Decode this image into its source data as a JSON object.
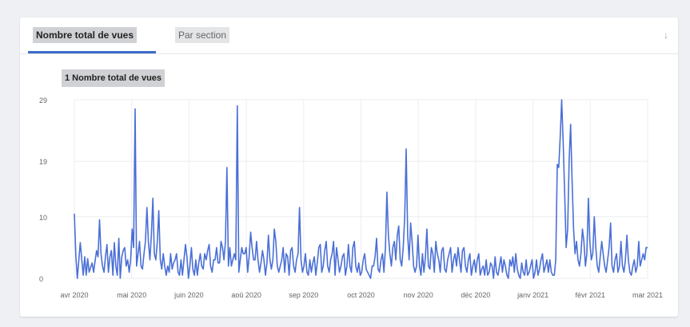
{
  "tabs": {
    "total_views": "Nombre total de vues",
    "by_section": "Par section"
  },
  "icons": {
    "download": "download-icon"
  },
  "colors": {
    "line": "#4a6fd6",
    "accent": "#3b6ccc",
    "grid": "#eceef1"
  },
  "chart_data": {
    "type": "line",
    "title": "",
    "series": [
      {
        "name": "1 Nombre total de vues",
        "values": [
          10.5,
          3.5,
          0,
          3,
          5.8,
          3,
          0.5,
          3.5,
          0.5,
          3.2,
          1,
          1.8,
          2.5,
          1,
          2.8,
          4.5,
          3.5,
          9.5,
          4,
          2,
          1,
          3.5,
          5.5,
          1,
          3.5,
          4.5,
          0.5,
          5.8,
          2,
          0.5,
          6.5,
          0,
          3.5,
          4.5,
          5,
          2,
          3,
          1,
          3,
          8,
          5,
          27.5,
          2,
          4,
          6,
          2,
          1.5,
          4,
          6,
          11.5,
          6,
          3,
          7,
          13,
          4,
          3,
          6,
          11,
          3,
          1.5,
          4,
          2,
          0.5,
          2,
          1,
          4,
          1.5,
          2.5,
          3,
          4,
          1,
          0.5,
          3,
          0.5,
          3,
          5.5,
          3.5,
          0,
          2,
          5,
          1.5,
          0.5,
          3,
          0.5,
          2.5,
          4,
          2,
          1.5,
          4,
          3,
          4.5,
          5.5,
          2,
          1,
          3,
          3,
          5,
          2.5,
          2.5,
          6,
          5,
          3,
          6,
          18,
          2,
          5,
          2,
          3,
          4,
          3,
          28,
          1,
          3,
          5,
          4,
          4,
          5,
          1,
          3.5,
          7.5,
          5,
          3,
          3,
          6,
          3,
          1,
          2.5,
          4.5,
          3,
          0.5,
          2.5,
          7,
          3,
          1.5,
          3,
          8,
          6,
          2,
          1,
          2,
          3,
          5,
          1,
          4,
          3.5,
          0.5,
          4.5,
          5,
          2,
          1,
          3,
          4,
          11.5,
          3,
          1,
          2,
          4,
          1,
          0.5,
          3,
          1,
          2.5,
          3.5,
          0.5,
          2.5,
          5,
          5.5,
          1,
          2,
          4.5,
          6,
          2,
          1,
          3,
          4,
          6,
          0.5,
          5,
          3,
          1,
          2,
          3.5,
          4,
          0.5,
          2,
          5.5,
          2,
          1,
          5,
          6,
          2,
          1,
          2.5,
          0.5,
          1,
          3,
          4,
          1.5,
          1,
          0.5,
          0,
          2,
          2,
          3.5,
          6.5,
          1.5,
          1,
          3,
          4,
          1,
          5,
          14,
          7,
          4,
          2,
          5,
          6,
          3,
          7,
          8.5,
          3,
          2,
          5,
          10,
          21,
          7,
          3,
          9,
          6,
          2,
          1,
          2,
          7,
          2,
          0.5,
          4,
          1,
          3.5,
          8,
          2,
          1.5,
          5,
          4,
          1,
          6,
          4,
          3,
          1,
          4.5,
          5,
          1.5,
          1,
          3,
          4,
          5,
          1,
          3,
          4,
          2,
          5,
          3,
          1,
          4.5,
          5,
          2,
          1,
          3,
          4,
          0.5,
          2,
          3,
          1,
          3,
          4,
          0.5,
          1.5,
          2,
          0.5,
          3,
          0.5,
          1,
          2.5,
          2,
          0,
          3.5,
          1,
          0.5,
          2,
          3.5,
          1,
          3,
          2,
          0.5,
          0,
          3,
          2,
          3.5,
          1,
          4,
          1.5,
          0.5,
          0,
          2.5,
          1,
          0.5,
          3,
          0.5,
          1,
          2,
          3,
          0,
          1,
          3,
          0.5,
          1.5,
          3,
          4,
          1,
          2,
          3,
          1,
          3,
          1,
          0.5,
          0.5,
          3,
          18.5,
          18,
          23,
          29,
          22,
          14,
          5,
          8,
          19,
          25,
          16,
          8,
          4,
          6,
          3,
          2,
          4,
          8,
          6,
          2,
          4,
          13,
          6,
          3,
          4,
          10,
          5,
          2,
          1,
          3.5,
          6,
          4,
          2,
          1,
          3,
          5,
          9,
          2,
          1,
          3,
          4,
          1,
          2,
          6,
          2,
          1,
          3,
          7,
          3,
          1,
          0.5,
          2,
          3,
          1,
          2,
          6,
          2,
          3,
          4,
          3,
          5,
          5
        ]
      }
    ],
    "x_tick_labels": [
      "avr 2020",
      "mai 2020",
      "juin 2020",
      "aoû 2020",
      "sep 2020",
      "oct 2020",
      "nov 2020",
      "déc 2020",
      "janv 2021",
      "févr 2021",
      "mar 2021"
    ],
    "y_tick_labels": [
      "0",
      "10",
      "19",
      "29"
    ],
    "y_ticks": [
      0,
      10,
      19,
      29
    ],
    "ylim": [
      0,
      29
    ],
    "grid": true,
    "x_grid": true
  }
}
